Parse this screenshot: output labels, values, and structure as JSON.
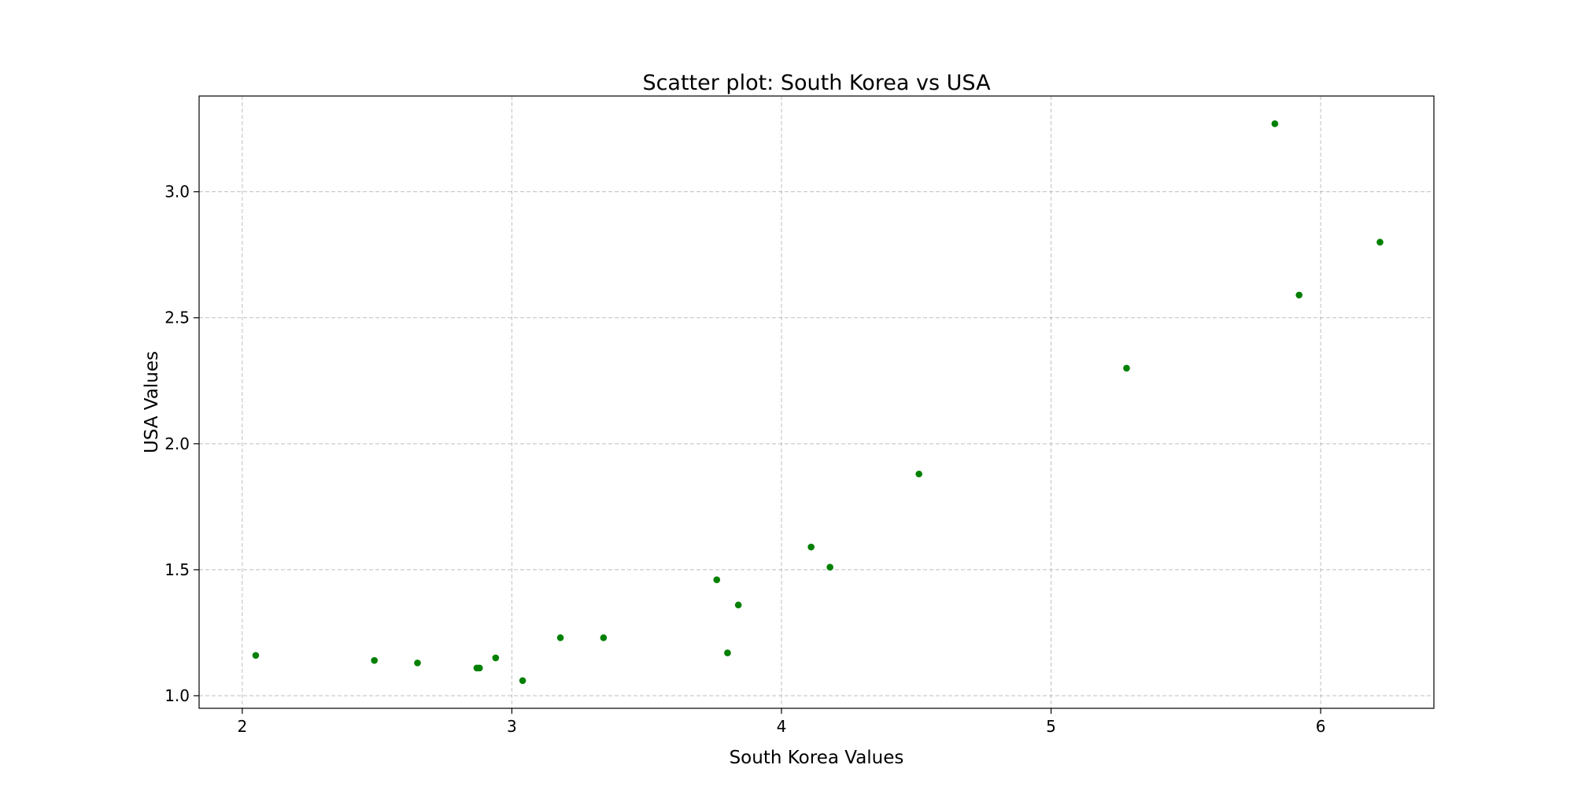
{
  "chart_data": {
    "type": "scatter",
    "title": "Scatter plot: South Korea vs USA",
    "xlabel": "South Korea Values",
    "ylabel": "USA Values",
    "xlim": [
      1.84,
      6.42
    ],
    "ylim": [
      0.95,
      3.38
    ],
    "xticks": [
      2,
      3,
      4,
      5,
      6
    ],
    "xtick_labels": [
      "2",
      "3",
      "4",
      "5",
      "6"
    ],
    "yticks": [
      1.0,
      1.5,
      2.0,
      2.5,
      3.0
    ],
    "ytick_labels": [
      "1.0",
      "1.5",
      "2.0",
      "2.5",
      "3.0"
    ],
    "grid": true,
    "legend": "none",
    "marker_color": "#008000",
    "points": [
      {
        "x": 2.05,
        "y": 1.16
      },
      {
        "x": 2.49,
        "y": 1.14
      },
      {
        "x": 2.65,
        "y": 1.13
      },
      {
        "x": 2.87,
        "y": 1.11
      },
      {
        "x": 2.88,
        "y": 1.11
      },
      {
        "x": 2.94,
        "y": 1.15
      },
      {
        "x": 3.04,
        "y": 1.06
      },
      {
        "x": 3.18,
        "y": 1.23
      },
      {
        "x": 3.34,
        "y": 1.23
      },
      {
        "x": 3.76,
        "y": 1.46
      },
      {
        "x": 3.8,
        "y": 1.17
      },
      {
        "x": 3.84,
        "y": 1.36
      },
      {
        "x": 4.11,
        "y": 1.59
      },
      {
        "x": 4.18,
        "y": 1.51
      },
      {
        "x": 4.51,
        "y": 1.88
      },
      {
        "x": 5.28,
        "y": 2.3
      },
      {
        "x": 5.83,
        "y": 3.27
      },
      {
        "x": 5.92,
        "y": 2.59
      },
      {
        "x": 6.22,
        "y": 2.8
      }
    ]
  }
}
